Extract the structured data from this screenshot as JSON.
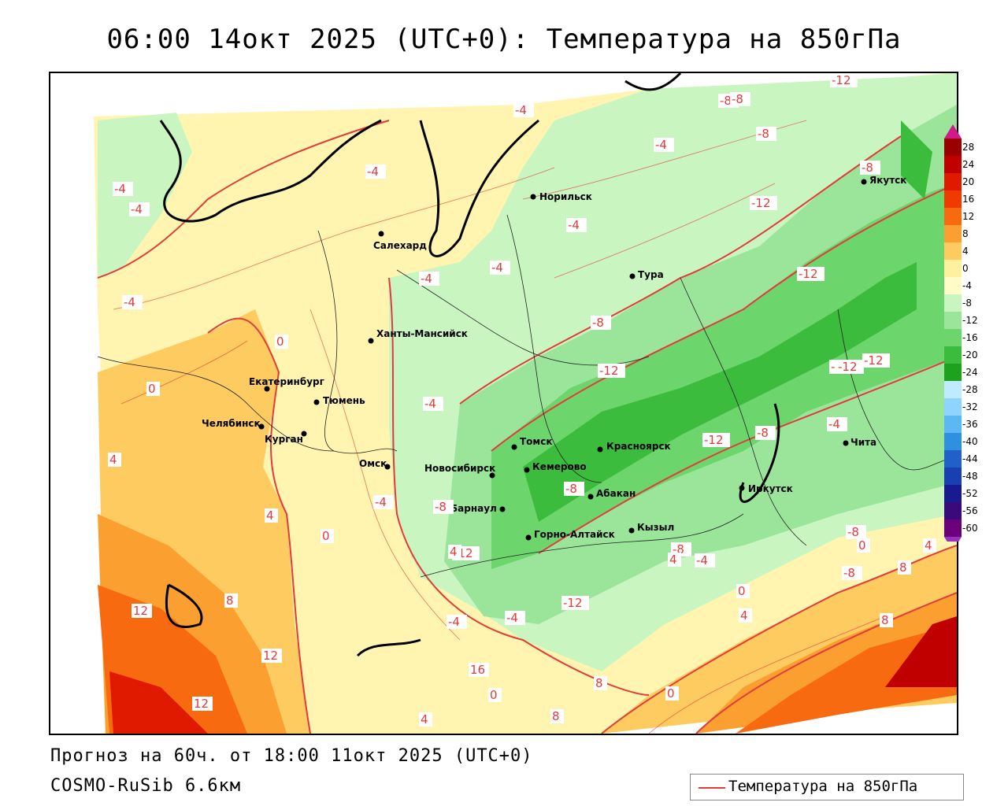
{
  "title": "06:00 14окт 2025 (UTC+0): Температура на 850гПа",
  "forecast_line": "Прогноз на 60ч. от 18:00 11окт 2025 (UTC+0)",
  "model_name": "COSMO-RuSib 6.6км",
  "legend": {
    "label": "Температура на 850гПа",
    "line_color": "#e23b3b"
  },
  "colorbar": {
    "ticks": [
      "28",
      "24",
      "20",
      "16",
      "12",
      "8",
      "4",
      "0",
      "-4",
      "-8",
      "-12",
      "-16",
      "-20",
      "-24",
      "-28",
      "-32",
      "-36",
      "-40",
      "-44",
      "-48",
      "-52",
      "-56",
      "-60"
    ],
    "colors": [
      "#9b0000",
      "#c00000",
      "#e01a00",
      "#f03a00",
      "#f86a10",
      "#fba030",
      "#fdcb60",
      "#fff0a0",
      "#fffcc8",
      "#c8f5c0",
      "#9be59b",
      "#6cd56c",
      "#3cbc3c",
      "#1ea21e",
      "#bfeaff",
      "#8fd3ff",
      "#5bb8f5",
      "#3090e0",
      "#2060c8",
      "#1a3fb0",
      "#1a1a90",
      "#3a0a7a",
      "#6a007a"
    ],
    "top_arrow_color": "#d01a8a",
    "bottom_arrow_color": "#9a30c0"
  },
  "cities": [
    {
      "name": "Якутск"
    },
    {
      "name": "Норильск"
    },
    {
      "name": "Салехард"
    },
    {
      "name": "Тура"
    },
    {
      "name": "Ханты-Мансийск"
    },
    {
      "name": "Екатеринбург"
    },
    {
      "name": "Тюмень"
    },
    {
      "name": "Челябинск"
    },
    {
      "name": "Курган"
    },
    {
      "name": "Омск"
    },
    {
      "name": "Новосибирск"
    },
    {
      "name": "Томск"
    },
    {
      "name": "Красноярск"
    },
    {
      "name": "Кемерово"
    },
    {
      "name": "Абакан"
    },
    {
      "name": "Барнаул"
    },
    {
      "name": "Горно-Алтайск"
    },
    {
      "name": "Кызыл"
    },
    {
      "name": "Иркутск"
    },
    {
      "name": "Чита"
    }
  ],
  "isotherm_labels": [
    "-8",
    "-12",
    "-8",
    "-8",
    "-4",
    "-8",
    "-4",
    "-4",
    "-4",
    "-4",
    "-4",
    "-4",
    "-4",
    "-4",
    "-12",
    "-12",
    "-8",
    "-12",
    "-12",
    "-12",
    "0",
    "0",
    "-4",
    "4",
    "4",
    "0",
    "-4",
    "-8",
    "-12",
    "-8",
    "-12",
    "-12",
    "-8",
    "-4",
    "-8",
    "-4",
    "-4",
    "-8",
    "-8",
    "-4",
    "0",
    "4",
    "4",
    "8",
    "8",
    "12",
    "8",
    "12",
    "12",
    "16",
    "0",
    "4",
    "8",
    "8",
    "0",
    "4",
    "0",
    "4",
    "-12",
    "-8",
    "4"
  ],
  "fill_levels": [
    "-4",
    "0",
    "4",
    "8",
    "12",
    "16",
    "-8",
    "-12",
    "-16"
  ],
  "colors": {
    "contour": "#e23b3b",
    "coast": "#000000",
    "border": "#222222"
  }
}
